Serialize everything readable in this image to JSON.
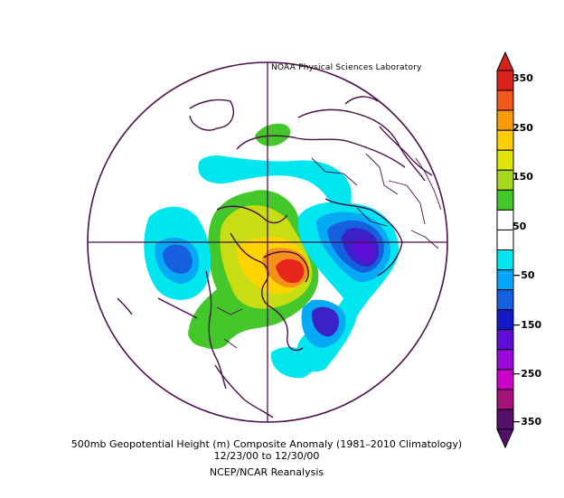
{
  "credit": "NOAA Physical Sciences Laboratory",
  "caption": {
    "line1": "500mb Geopotential Height (m) Composite Anomaly (1981–2010 Climatology)",
    "line2": "12/23/00  to 12/30/00",
    "line3": "NCEP/NCAR Reanalysis"
  },
  "colorbar": {
    "labels": [
      "350",
      "250",
      "150",
      "50",
      "−50",
      "−150",
      "−250",
      "−350"
    ],
    "colors": [
      "#d8231c",
      "#f3591f",
      "#fb9a0a",
      "#ffce00",
      "#dfe607",
      "#a5d81c",
      "#43c72b",
      "#ffffff",
      "#ffffff",
      "#00e6ee",
      "#00a5ff",
      "#1560df",
      "#1219c6",
      "#5e0ed6",
      "#9a09d7",
      "#cc00c9",
      "#a5127a",
      "#55106c"
    ]
  },
  "palette": {
    "red": "#e8261c",
    "orange": "#f3911a",
    "yellow": "#ffd300",
    "yellowgreen": "#c8dd14",
    "green": "#43c72b",
    "cyan": "#00e6ee",
    "lightblue": "#05a9f4",
    "blue": "#1560df",
    "indigo": "#3a21c8",
    "purple": "#5e0ed6",
    "outline": "#4a0f4a"
  }
}
